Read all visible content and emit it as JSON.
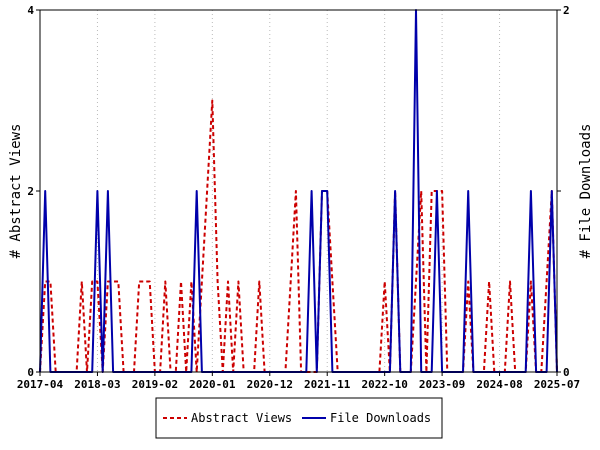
{
  "chart_data": {
    "type": "line",
    "ylabel_left": "# Abstract Views",
    "ylabel_right": "# File Downloads",
    "x_range": [
      "2017-04",
      "2025-07"
    ],
    "x_tick_labels": [
      "2017-04",
      "2018-03",
      "2019-02",
      "2020-01",
      "2020-12",
      "2021-11",
      "2022-10",
      "2023-09",
      "2024-08",
      "2025-07"
    ],
    "y_left_range": [
      0,
      4
    ],
    "y_left_ticks": [
      "0",
      "2",
      "4"
    ],
    "y_right_range": [
      0,
      2
    ],
    "y_right_ticks": [
      "0",
      "1",
      "2"
    ],
    "grid": "vertical dotted lines at x ticks",
    "legend_position": "bottom",
    "series": [
      {
        "name": "Abstract Views",
        "axis": "left",
        "color": "#cc0000",
        "dash": "dashed",
        "points": [
          [
            "2017-04",
            0
          ],
          [
            "2017-05",
            1
          ],
          [
            "2017-06",
            1
          ],
          [
            "2017-07",
            0
          ],
          [
            "2017-08",
            0
          ],
          [
            "2017-09",
            0
          ],
          [
            "2017-10",
            0
          ],
          [
            "2017-11",
            0
          ],
          [
            "2017-12",
            1
          ],
          [
            "2018-01",
            0
          ],
          [
            "2018-02",
            1
          ],
          [
            "2018-03",
            1
          ],
          [
            "2018-04",
            0
          ],
          [
            "2018-05",
            1
          ],
          [
            "2018-06",
            1
          ],
          [
            "2018-07",
            1
          ],
          [
            "2018-08",
            0
          ],
          [
            "2018-09",
            0
          ],
          [
            "2018-10",
            0
          ],
          [
            "2018-11",
            1
          ],
          [
            "2018-12",
            1
          ],
          [
            "2019-01",
            1
          ],
          [
            "2019-02",
            0
          ],
          [
            "2019-03",
            0
          ],
          [
            "2019-04",
            1
          ],
          [
            "2019-05",
            0
          ],
          [
            "2019-06",
            0
          ],
          [
            "2019-07",
            1
          ],
          [
            "2019-08",
            0
          ],
          [
            "2019-09",
            1
          ],
          [
            "2019-10",
            0
          ],
          [
            "2019-11",
            1
          ],
          [
            "2019-12",
            2
          ],
          [
            "2020-01",
            3
          ],
          [
            "2020-02",
            1
          ],
          [
            "2020-03",
            0
          ],
          [
            "2020-04",
            1
          ],
          [
            "2020-05",
            0
          ],
          [
            "2020-06",
            1
          ],
          [
            "2020-07",
            0
          ],
          [
            "2020-08",
            0
          ],
          [
            "2020-09",
            0
          ],
          [
            "2020-10",
            1
          ],
          [
            "2020-11",
            0
          ],
          [
            "2020-12",
            0
          ],
          [
            "2021-01",
            0
          ],
          [
            "2021-02",
            0
          ],
          [
            "2021-03",
            0
          ],
          [
            "2021-04",
            1
          ],
          [
            "2021-05",
            2
          ],
          [
            "2021-06",
            0
          ],
          [
            "2021-07",
            0
          ],
          [
            "2021-08",
            0
          ],
          [
            "2021-09",
            0
          ],
          [
            "2021-10",
            2
          ],
          [
            "2021-11",
            2
          ],
          [
            "2021-12",
            1
          ],
          [
            "2022-01",
            0
          ],
          [
            "2022-02",
            0
          ],
          [
            "2022-03",
            0
          ],
          [
            "2022-04",
            0
          ],
          [
            "2022-05",
            0
          ],
          [
            "2022-06",
            0
          ],
          [
            "2022-07",
            0
          ],
          [
            "2022-08",
            0
          ],
          [
            "2022-09",
            0
          ],
          [
            "2022-10",
            1
          ],
          [
            "2022-11",
            0
          ],
          [
            "2022-12",
            2
          ],
          [
            "2023-01",
            0
          ],
          [
            "2023-02",
            0
          ],
          [
            "2023-03",
            0
          ],
          [
            "2023-04",
            1
          ],
          [
            "2023-05",
            2
          ],
          [
            "2023-06",
            0
          ],
          [
            "2023-07",
            2
          ],
          [
            "2023-08",
            2
          ],
          [
            "2023-09",
            2
          ],
          [
            "2023-10",
            0
          ],
          [
            "2023-11",
            0
          ],
          [
            "2023-12",
            0
          ],
          [
            "2024-01",
            0
          ],
          [
            "2024-02",
            1
          ],
          [
            "2024-03",
            0
          ],
          [
            "2024-04",
            0
          ],
          [
            "2024-05",
            0
          ],
          [
            "2024-06",
            1
          ],
          [
            "2024-07",
            0
          ],
          [
            "2024-08",
            0
          ],
          [
            "2024-09",
            0
          ],
          [
            "2024-10",
            1
          ],
          [
            "2024-11",
            0
          ],
          [
            "2024-12",
            0
          ],
          [
            "2025-01",
            0
          ],
          [
            "2025-02",
            1
          ],
          [
            "2025-03",
            0
          ],
          [
            "2025-04",
            0
          ],
          [
            "2025-05",
            1
          ],
          [
            "2025-06",
            2
          ],
          [
            "2025-07",
            0
          ]
        ]
      },
      {
        "name": "File Downloads",
        "axis": "right",
        "color": "#0000aa",
        "dash": "solid",
        "points": [
          [
            "2017-04",
            0
          ],
          [
            "2017-05",
            1
          ],
          [
            "2017-06",
            0
          ],
          [
            "2018-02",
            0
          ],
          [
            "2018-03",
            1
          ],
          [
            "2018-04",
            0
          ],
          [
            "2018-05",
            1
          ],
          [
            "2018-06",
            0
          ],
          [
            "2019-09",
            0
          ],
          [
            "2019-10",
            1
          ],
          [
            "2019-11",
            0
          ],
          [
            "2021-07",
            0
          ],
          [
            "2021-08",
            1
          ],
          [
            "2021-09",
            0
          ],
          [
            "2021-10",
            1
          ],
          [
            "2021-11",
            1
          ],
          [
            "2021-12",
            0
          ],
          [
            "2022-11",
            0
          ],
          [
            "2022-12",
            1
          ],
          [
            "2023-01",
            0
          ],
          [
            "2023-03",
            0
          ],
          [
            "2023-04",
            2
          ],
          [
            "2023-05",
            0
          ],
          [
            "2023-07",
            0
          ],
          [
            "2023-08",
            1
          ],
          [
            "2023-09",
            0
          ],
          [
            "2024-01",
            0
          ],
          [
            "2024-02",
            1
          ],
          [
            "2024-03",
            0
          ],
          [
            "2025-01",
            0
          ],
          [
            "2025-02",
            1
          ],
          [
            "2025-03",
            0
          ],
          [
            "2025-05",
            0
          ],
          [
            "2025-06",
            1
          ],
          [
            "2025-07",
            0
          ]
        ]
      }
    ]
  }
}
